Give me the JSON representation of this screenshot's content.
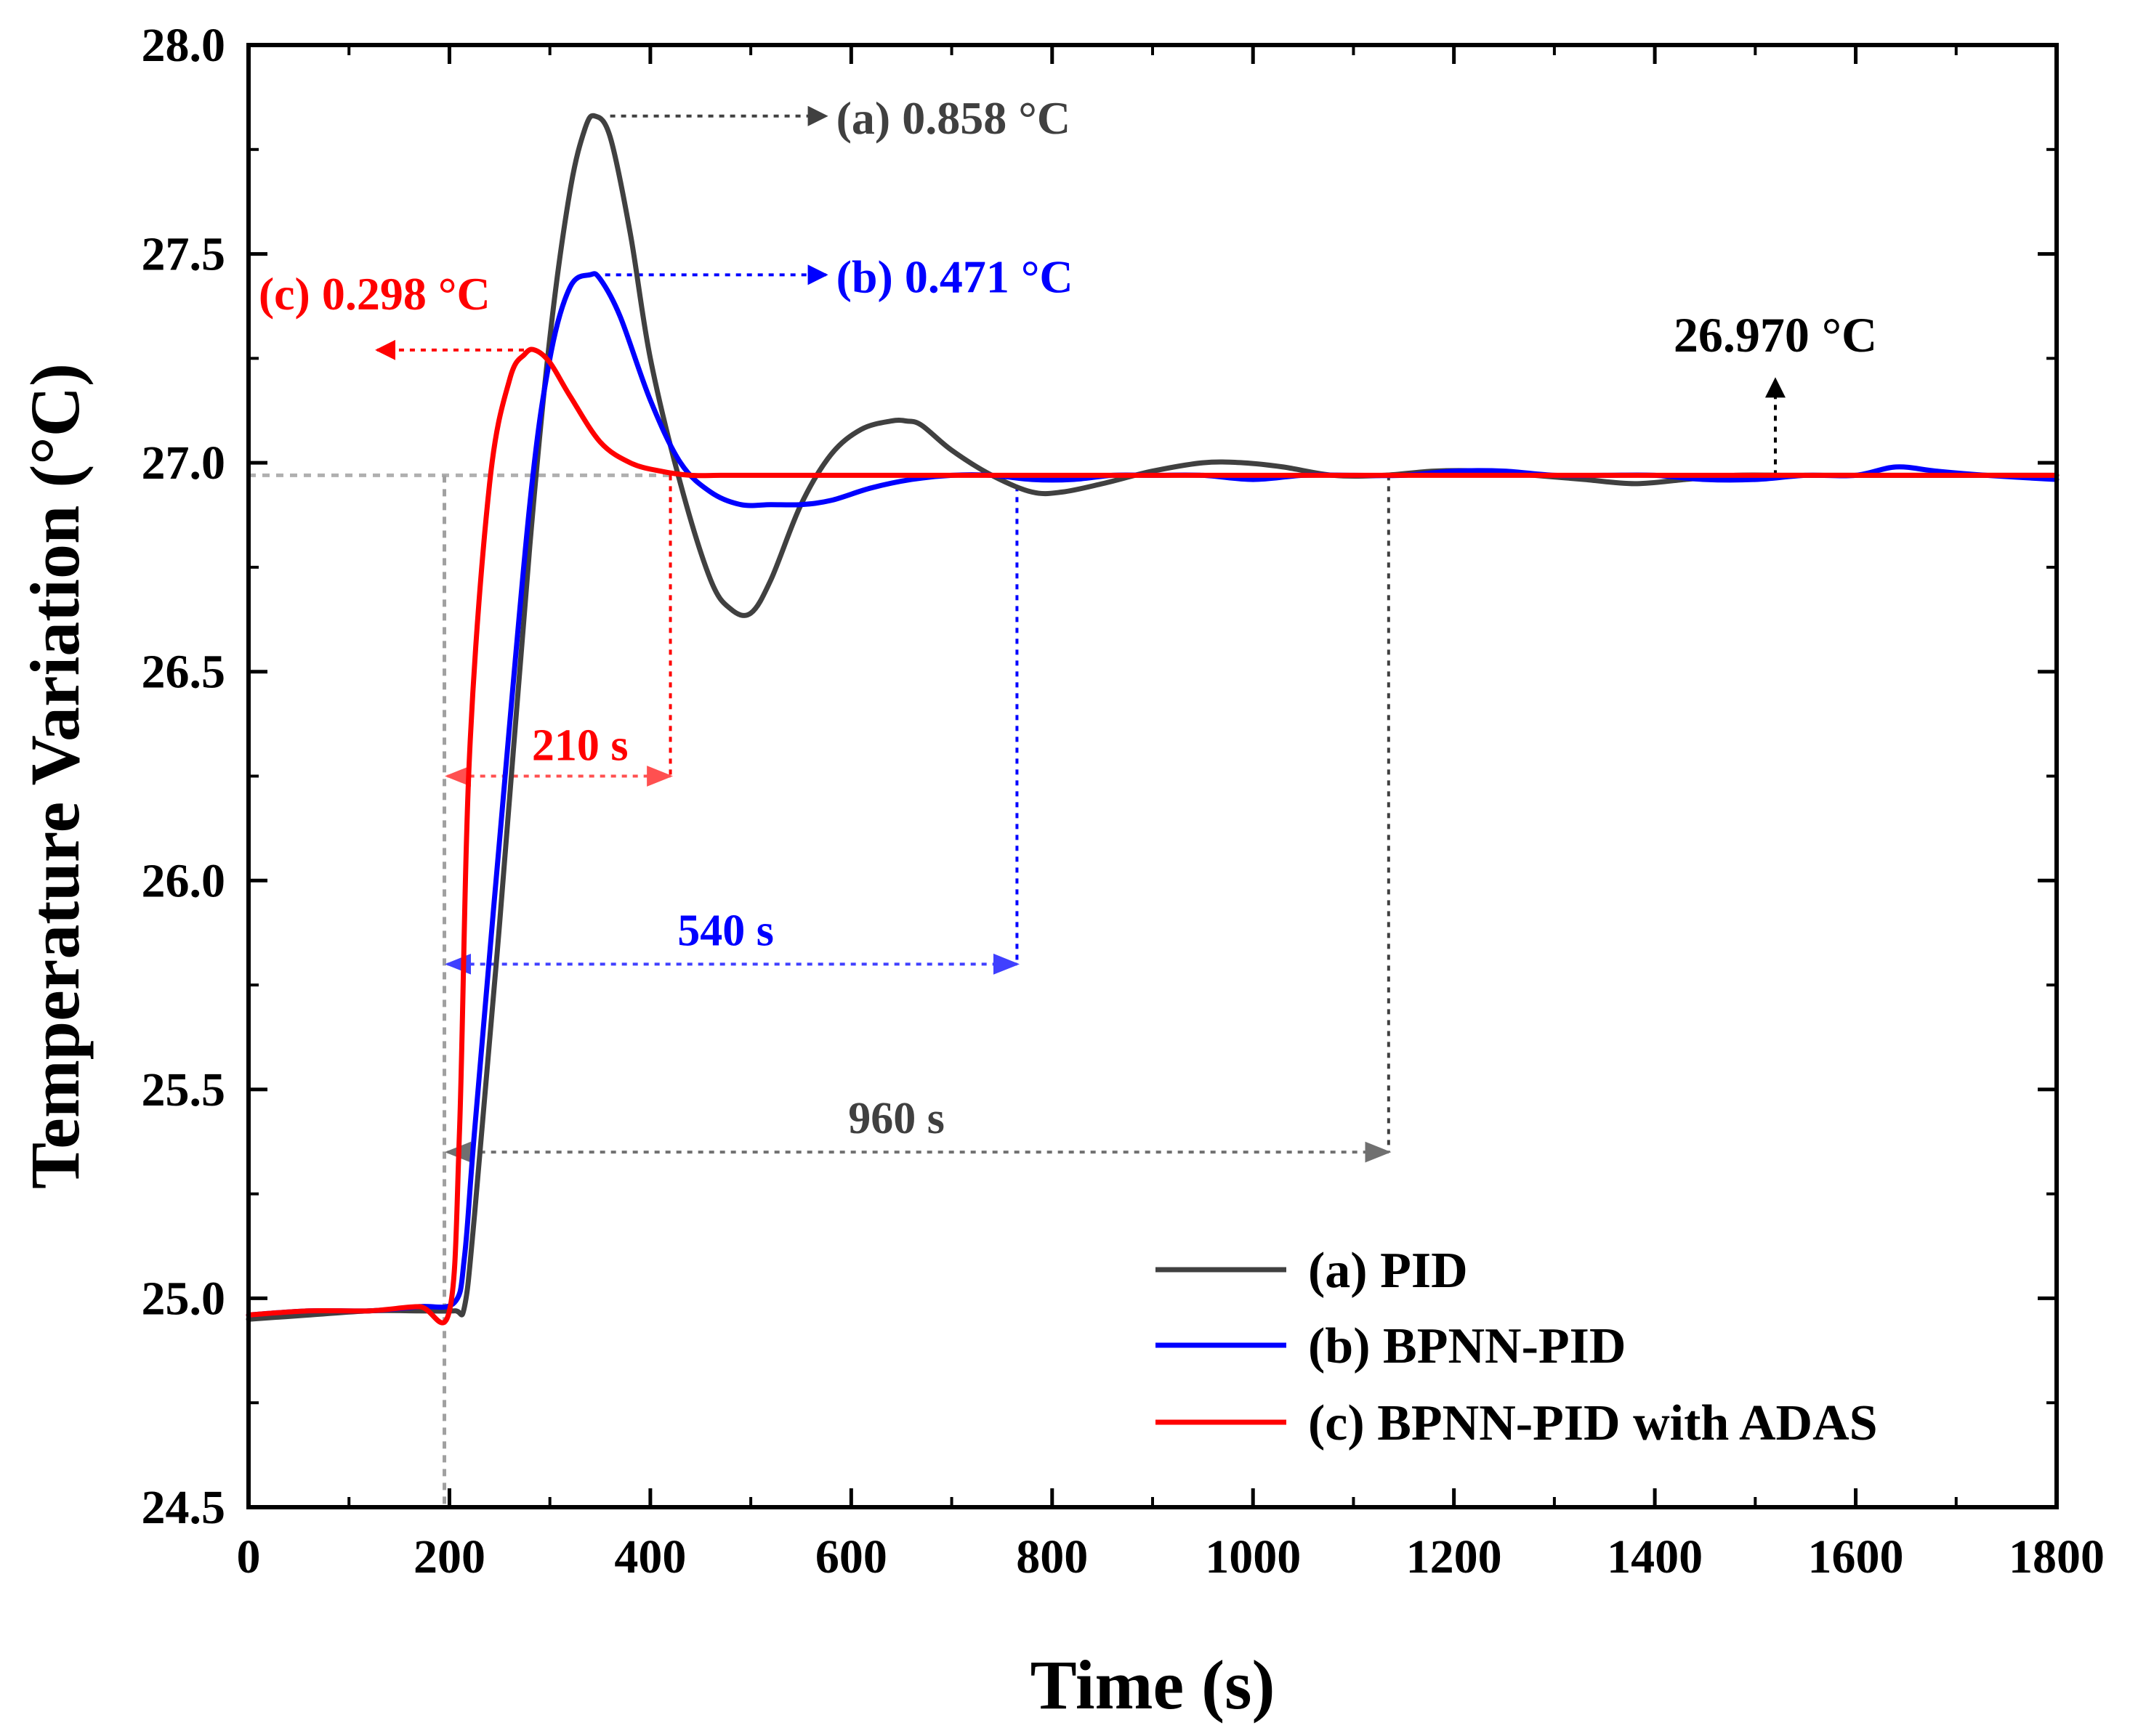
{
  "chart_data": {
    "type": "line",
    "title": "",
    "xlabel": "Time (s)",
    "ylabel": "Temperature Variation (°C)",
    "xlim": [
      0,
      1800
    ],
    "ylim": [
      24.5,
      28.0
    ],
    "x_ticks": [
      "0",
      "200",
      "400",
      "600",
      "800",
      "1000",
      "1200",
      "1400",
      "1600",
      "1800"
    ],
    "y_ticks": [
      "24.5",
      "25.0",
      "25.5",
      "26.0",
      "26.5",
      "27.0",
      "27.5",
      "28.0"
    ],
    "setpoint": 26.97,
    "series": [
      {
        "name": "(a) PID",
        "color": "#404040",
        "x": [
          0,
          60,
          120,
          170,
          205,
          215,
          225,
          250,
          280,
          300,
          320,
          335,
          345,
          360,
          380,
          400,
          430,
          460,
          480,
          500,
          520,
          550,
          580,
          610,
          640,
          655,
          670,
          700,
          740,
          780,
          810,
          850,
          900,
          950,
          990,
          1030,
          1080,
          1130,
          1180,
          1230,
          1280,
          1330,
          1380,
          1430,
          1480,
          1530,
          1580,
          1630,
          1680,
          1730,
          1800
        ],
        "y": [
          24.95,
          24.96,
          24.97,
          24.97,
          24.97,
          24.98,
          25.2,
          25.9,
          26.8,
          27.3,
          27.65,
          27.8,
          27.83,
          27.78,
          27.55,
          27.25,
          26.95,
          26.72,
          26.65,
          26.64,
          26.72,
          26.9,
          27.02,
          27.08,
          27.1,
          27.1,
          27.09,
          27.03,
          26.97,
          26.93,
          26.93,
          26.95,
          26.98,
          27.0,
          27.0,
          26.99,
          26.97,
          26.97,
          26.98,
          26.98,
          26.97,
          26.96,
          26.95,
          26.96,
          26.97,
          26.97,
          26.97,
          26.97,
          26.97,
          26.97,
          26.97
        ]
      },
      {
        "name": "(b) BPNN-PID",
        "color": "#0000ff",
        "x": [
          0,
          60,
          120,
          170,
          205,
          215,
          225,
          250,
          280,
          300,
          320,
          340,
          350,
          370,
          400,
          430,
          460,
          490,
          520,
          550,
          580,
          620,
          660,
          700,
          740,
          780,
          820,
          860,
          900,
          950,
          1000,
          1050,
          1100,
          1150,
          1200,
          1250,
          1300,
          1350,
          1400,
          1450,
          1500,
          1550,
          1600,
          1640,
          1680,
          1730,
          1800
        ],
        "y": [
          24.96,
          24.97,
          24.97,
          24.98,
          24.99,
          25.1,
          25.4,
          26.1,
          26.9,
          27.25,
          27.42,
          27.45,
          27.44,
          27.35,
          27.15,
          27.0,
          26.93,
          26.9,
          26.9,
          26.9,
          26.91,
          26.94,
          26.96,
          26.97,
          26.97,
          26.96,
          26.96,
          26.97,
          26.97,
          26.97,
          26.96,
          26.97,
          26.97,
          26.97,
          26.98,
          26.98,
          26.97,
          26.97,
          26.97,
          26.96,
          26.96,
          26.97,
          26.97,
          26.99,
          26.98,
          26.97,
          26.96
        ]
      },
      {
        "name": "(c) BPNN-PID with ADAS",
        "color": "#ff0000",
        "x": [
          0,
          60,
          120,
          170,
          200,
          210,
          220,
          240,
          260,
          275,
          285,
          300,
          320,
          350,
          380,
          410,
          440,
          470,
          500,
          550,
          600,
          650,
          700,
          750,
          800,
          850,
          900,
          950,
          1000,
          1100,
          1200,
          1300,
          1400,
          1500,
          1600,
          1700,
          1800
        ],
        "y": [
          24.96,
          24.97,
          24.97,
          24.98,
          24.97,
          25.4,
          26.3,
          26.95,
          27.2,
          27.26,
          27.27,
          27.24,
          27.16,
          27.05,
          27.0,
          26.98,
          26.97,
          26.97,
          26.97,
          26.97,
          26.97,
          26.97,
          26.97,
          26.97,
          26.97,
          26.97,
          26.97,
          26.97,
          26.97,
          26.97,
          26.97,
          26.97,
          26.97,
          26.97,
          26.97,
          26.97,
          26.97
        ]
      }
    ],
    "annotations": [
      {
        "text": "(a) 0.858 °C",
        "color": "#404040"
      },
      {
        "text": "(b) 0.471 °C",
        "color": "#0000ff"
      },
      {
        "text": "(c) 0.298 °C",
        "color": "#ff0000"
      },
      {
        "text": "26.970 °C",
        "color": "#000000"
      },
      {
        "text": "210 s",
        "color": "#ff0000"
      },
      {
        "text": "540 s",
        "color": "#0000ff"
      },
      {
        "text": "960 s",
        "color": "#404040"
      }
    ],
    "legend_position": "bottom-right"
  }
}
